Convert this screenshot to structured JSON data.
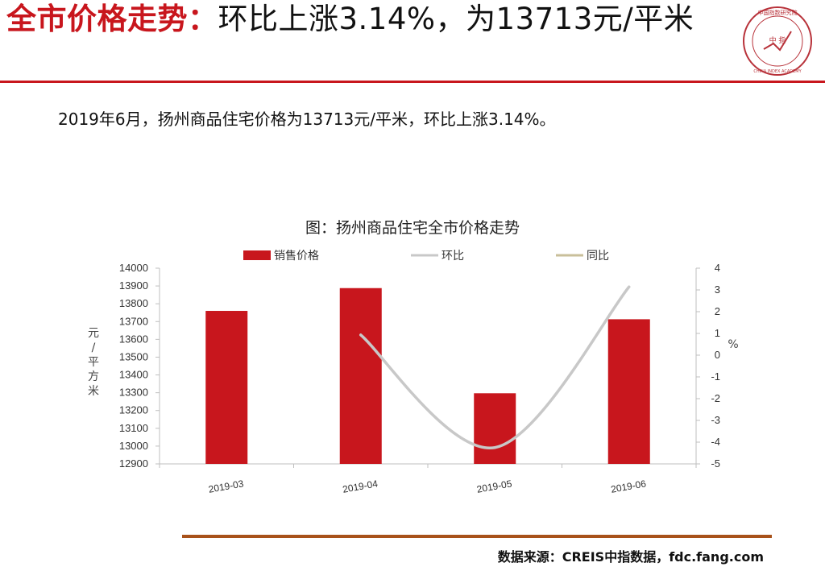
{
  "header": {
    "title_red": "全市价格走势：",
    "title_black": "环比上涨3.14%，为13713元/平米"
  },
  "logo": {
    "icon": "china-index-academy-seal",
    "text_top": "中国指数研究院",
    "text_center": "中 指",
    "text_bottom": "CHINA INDEX ACADEMY"
  },
  "summary": "2019年6月，扬州商品住宅价格为13713元/平米，环比上涨3.14%。",
  "chart_data": {
    "type": "bar",
    "title": "图：扬州商品住宅全市价格走势",
    "categories": [
      "2019-03",
      "2019-04",
      "2019-05",
      "2019-06"
    ],
    "series": [
      {
        "name": "销售价格",
        "type": "bar",
        "axis": "left",
        "color": "#c8161d",
        "values": [
          13760,
          13888,
          13297,
          13713
        ]
      },
      {
        "name": "环比",
        "type": "line",
        "axis": "right",
        "color": "#c8c8c8",
        "values": [
          null,
          0.93,
          -4.25,
          3.14
        ]
      },
      {
        "name": "同比",
        "type": "line",
        "axis": "right",
        "color": "#c9bf9a",
        "values": [
          null,
          null,
          null,
          null
        ]
      }
    ],
    "left_axis": {
      "label": "元/平方米",
      "ylim": [
        12900,
        14000
      ],
      "ticks": [
        14000,
        13900,
        13800,
        13700,
        13600,
        13500,
        13400,
        13300,
        13200,
        13100,
        13000,
        12900
      ]
    },
    "right_axis": {
      "label": "%",
      "ylim": [
        -5,
        4
      ],
      "ticks": [
        4,
        3,
        2,
        1,
        0,
        -1,
        -2,
        -3,
        -4,
        -5
      ]
    },
    "legend_position": "top",
    "grid": false
  },
  "footer": {
    "source": "数据来源：CREIS中指数据，fdc.fang.com"
  },
  "colors": {
    "accent_red": "#c8161d",
    "bottom_rule": "#a8521a"
  }
}
